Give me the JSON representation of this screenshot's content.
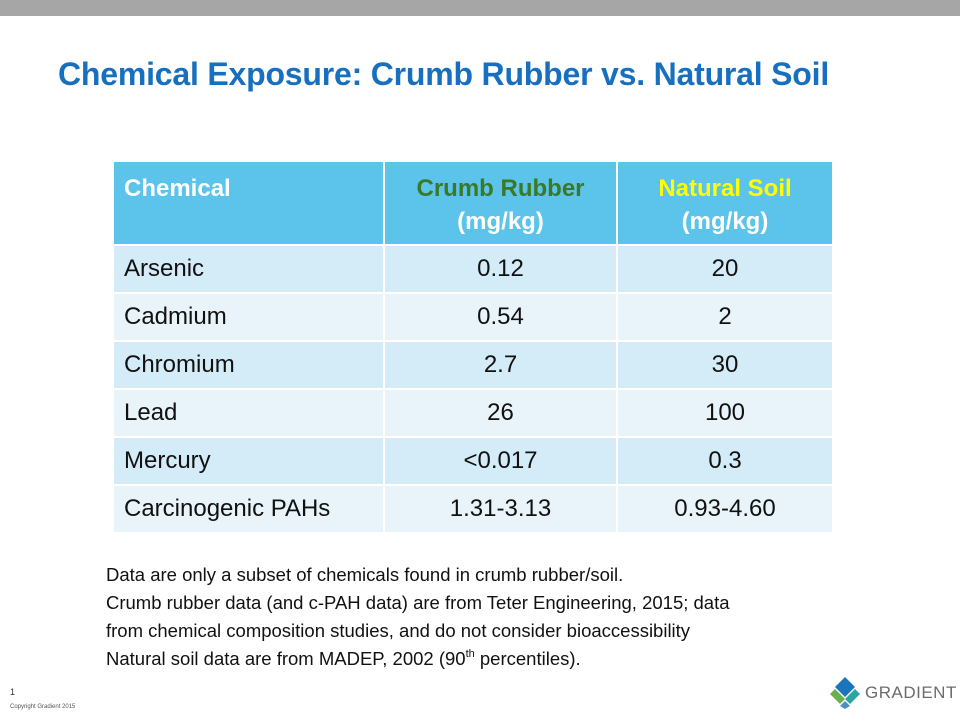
{
  "slide": {
    "title": "Chemical Exposure: Crumb Rubber vs. Natural Soil",
    "page_number": "1",
    "copyright": "Copyright Gradient 2015"
  },
  "table": {
    "headers": {
      "chemical": "Chemical",
      "crumb_name": "Crumb Rubber",
      "crumb_unit": "(mg/kg)",
      "soil_name": "Natural Soil",
      "soil_unit": "(mg/kg)"
    },
    "rows": [
      {
        "chemical": "Arsenic",
        "crumb_rubber": "0.12",
        "natural_soil": "20"
      },
      {
        "chemical": "Cadmium",
        "crumb_rubber": "0.54",
        "natural_soil": "2"
      },
      {
        "chemical": "Chromium",
        "crumb_rubber": "2.7",
        "natural_soil": "30"
      },
      {
        "chemical": "Lead",
        "crumb_rubber": "26",
        "natural_soil": "100"
      },
      {
        "chemical": "Mercury",
        "crumb_rubber": "<0.017",
        "natural_soil": "0.3"
      },
      {
        "chemical": "Carcinogenic PAHs",
        "crumb_rubber": "1.31-3.13",
        "natural_soil": "0.93-4.60"
      }
    ]
  },
  "notes": {
    "line1": "Data are only a subset of chemicals found in crumb rubber/soil.",
    "line2": "Crumb rubber data (and c-PAH data) are from Teter Engineering, 2015; data",
    "line3": "from chemical composition studies, and do not consider bioaccessibility",
    "line4_before": "Natural soil data are from MADEP, 2002 (90",
    "line4_sup": "th",
    "line4_after": " percentiles)."
  },
  "logo": {
    "text": "GRADIENT",
    "colors": {
      "blue": "#1b75bb",
      "green": "#6ab04c",
      "teal": "#2aa6a0"
    }
  },
  "colors": {
    "title": "#1770bf",
    "header_bg": "#5cc3ea",
    "crumb_header": "#3a7a27",
    "soil_header": "#ffff00",
    "row_dark": "#d3ecf7",
    "row_light": "#e8f4fa"
  }
}
